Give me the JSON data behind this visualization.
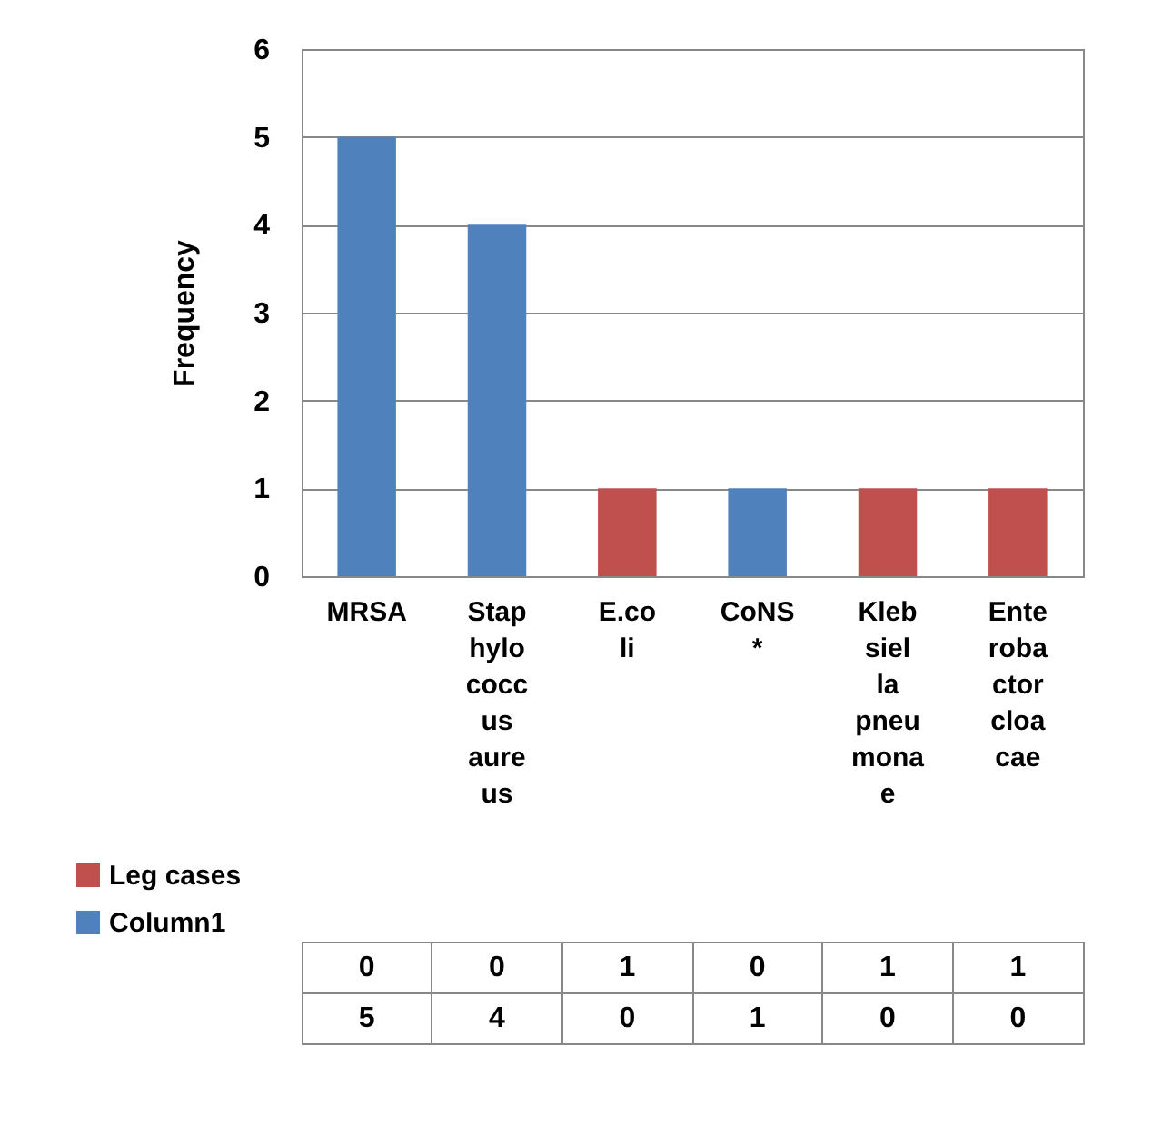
{
  "chart_data": {
    "type": "bar",
    "stacked": true,
    "ylabel": "Frequency",
    "categories": [
      "MRSA",
      "Staphylococcus aureus",
      "E.coli",
      "CoNS*",
      "Klebsiella pneumonae",
      "Enterobactor cloacae"
    ],
    "series": [
      {
        "name": "Leg cases",
        "color": "#c0504d",
        "values": [
          0,
          0,
          1,
          0,
          1,
          1
        ]
      },
      {
        "name": "Column1",
        "color": "#4f81bd",
        "values": [
          5,
          4,
          0,
          1,
          0,
          0
        ]
      }
    ],
    "ylim": [
      0,
      6
    ],
    "yticks": [
      0,
      1,
      2,
      3,
      4,
      5,
      6
    ],
    "grid": "y",
    "legend": "bottom",
    "data_labels": true
  }
}
